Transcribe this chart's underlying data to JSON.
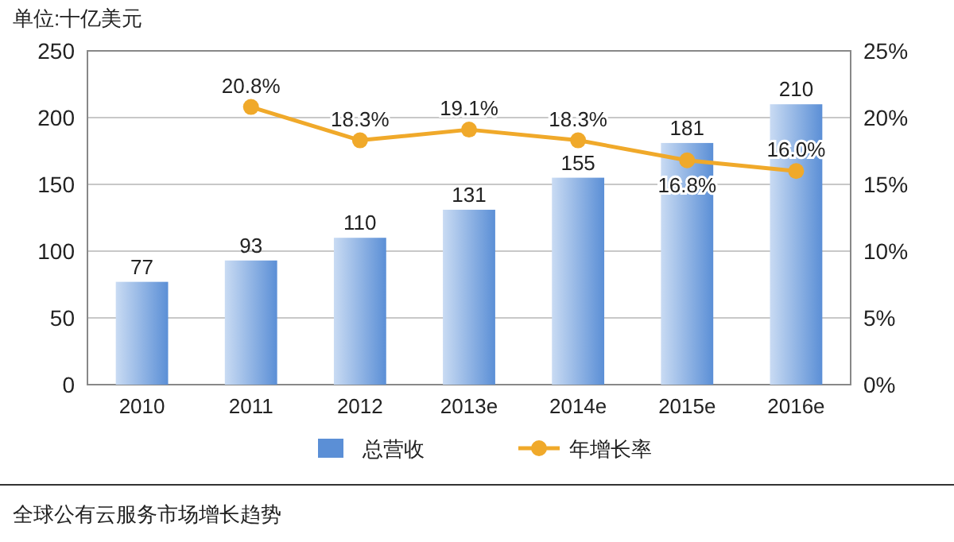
{
  "chart_data": {
    "type": "bar",
    "title": "单位:十亿美元",
    "categories": [
      "2010",
      "2011",
      "2012",
      "2013e",
      "2014e",
      "2015e",
      "2016e"
    ],
    "series": [
      {
        "name": "总营收",
        "color": "#5b8fd6",
        "values": [
          77,
          93,
          110,
          131,
          155,
          181,
          210
        ],
        "value_labels": [
          "77",
          "93",
          "110",
          "131",
          "155",
          "181",
          "210"
        ]
      },
      {
        "name": "年增长率",
        "type": "line",
        "axis": "y2",
        "color": "#f0a92a",
        "marker": "circle",
        "values": [
          null,
          20.8,
          18.3,
          19.1,
          18.3,
          16.8,
          16.0
        ],
        "value_labels": [
          null,
          "20.8%",
          "18.3%",
          "19.1%",
          "18.3%",
          "16.8%",
          "16.0%"
        ]
      }
    ],
    "ylim": [
      0,
      250
    ],
    "yticks": [
      0,
      50,
      100,
      150,
      200,
      250
    ],
    "y2lim": [
      0,
      25
    ],
    "y2ticks": [
      {
        "value": 0,
        "label": "0%"
      },
      {
        "value": 5,
        "label": "5%"
      },
      {
        "value": 10,
        "label": "10%"
      },
      {
        "value": 15,
        "label": "15%"
      },
      {
        "value": 20,
        "label": "20%"
      },
      {
        "value": 25,
        "label": "25%"
      }
    ],
    "grid": "y",
    "legend": "bottom",
    "annotations": [
      "全球公有云服务市场增长趋势"
    ]
  }
}
